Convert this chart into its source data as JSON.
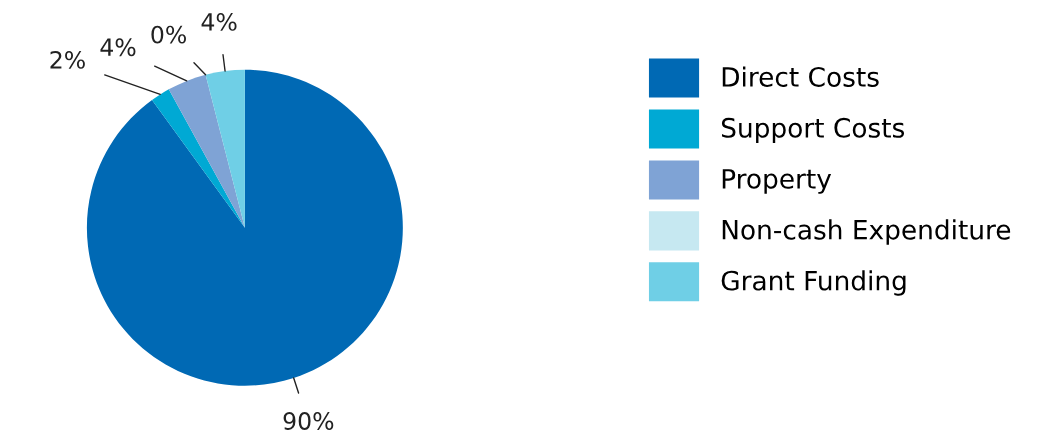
{
  "chart_data": {
    "type": "pie",
    "categories": [
      "Direct Costs",
      "Support Costs",
      "Property",
      "Non-cash Expenditure",
      "Grant Funding"
    ],
    "values": [
      90,
      2,
      4,
      0,
      4
    ],
    "value_labels": [
      "90%",
      "2%",
      "4%",
      "0%",
      "4%"
    ],
    "colors": [
      "#0069b4",
      "#00a9d4",
      "#7fa3d5",
      "#c6e8f1",
      "#6fcfe6"
    ],
    "legend": "right"
  }
}
